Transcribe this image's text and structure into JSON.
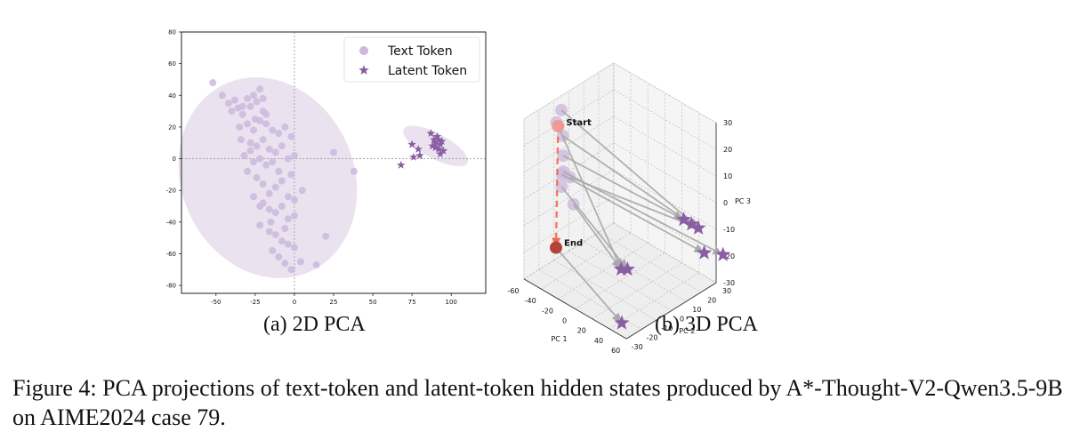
{
  "subcaptions": {
    "a_prefix": "(a)",
    "a_title": "2D PCA",
    "b_prefix": "(b)",
    "b_title": "3D PCA"
  },
  "figure_caption": "Figure 4: PCA projections of text-token and latent-token hidden states produced by A*-Thought-V2-Qwen3.5-9B on AIME2024 case 79.",
  "colors": {
    "text_token": "#cdb9dd",
    "latent_token": "#8a5ea4",
    "ellipse": "#e8dded",
    "arrow": "#a8a8a8",
    "start": "#ee9a94",
    "end": "#b0443a",
    "trajectory": "#ee6a50"
  },
  "chart_data": [
    {
      "type": "scatter",
      "xlim": [
        -72,
        122
      ],
      "ylim": [
        -85,
        80
      ],
      "xticks": [
        -50,
        -25,
        0,
        25,
        50,
        75,
        100
      ],
      "yticks": [
        -80,
        -60,
        -40,
        -20,
        0,
        20,
        40,
        60,
        80
      ],
      "grid": false,
      "reference_lines": {
        "x": 0,
        "y": 0
      },
      "legend_position": "top-right",
      "series": [
        {
          "name": "Text Token",
          "marker": "circle",
          "points": [
            [
              -52,
              48
            ],
            [
              -46,
              40
            ],
            [
              -42,
              35
            ],
            [
              -40,
              30
            ],
            [
              -38,
              37
            ],
            [
              -36,
              32
            ],
            [
              -33,
              28
            ],
            [
              -30,
              38
            ],
            [
              -28,
              33
            ],
            [
              -26,
              40
            ],
            [
              -22,
              44
            ],
            [
              -24,
              36
            ],
            [
              -20,
              30
            ],
            [
              -18,
              28
            ],
            [
              -35,
              20
            ],
            [
              -30,
              22
            ],
            [
              -26,
              18
            ],
            [
              -22,
              24
            ],
            [
              -18,
              22
            ],
            [
              -14,
              18
            ],
            [
              -10,
              16
            ],
            [
              -6,
              20
            ],
            [
              -2,
              14
            ],
            [
              -34,
              12
            ],
            [
              -28,
              10
            ],
            [
              -24,
              8
            ],
            [
              -20,
              12
            ],
            [
              -16,
              6
            ],
            [
              -12,
              4
            ],
            [
              -8,
              8
            ],
            [
              -4,
              0
            ],
            [
              0,
              2
            ],
            [
              -32,
              2
            ],
            [
              -26,
              -2
            ],
            [
              -22,
              0
            ],
            [
              -18,
              -4
            ],
            [
              -14,
              -2
            ],
            [
              -30,
              -8
            ],
            [
              -24,
              -12
            ],
            [
              -20,
              -16
            ],
            [
              -16,
              -22
            ],
            [
              -12,
              -18
            ],
            [
              -8,
              -14
            ],
            [
              -4,
              -24
            ],
            [
              0,
              -26
            ],
            [
              5,
              -20
            ],
            [
              -26,
              -24
            ],
            [
              -20,
              -28
            ],
            [
              -16,
              -32
            ],
            [
              -12,
              -34
            ],
            [
              -8,
              -30
            ],
            [
              -4,
              -38
            ],
            [
              0,
              -36
            ],
            [
              -22,
              -42
            ],
            [
              -16,
              -46
            ],
            [
              -12,
              -48
            ],
            [
              -8,
              -52
            ],
            [
              -4,
              -54
            ],
            [
              0,
              -56
            ],
            [
              -14,
              -58
            ],
            [
              -10,
              -62
            ],
            [
              -6,
              -66
            ],
            [
              -2,
              -70
            ],
            [
              4,
              -65
            ],
            [
              25,
              4
            ],
            [
              38,
              -8
            ],
            [
              20,
              -49
            ],
            [
              14,
              -67
            ],
            [
              -25,
              25
            ],
            [
              -33,
              33
            ],
            [
              -20,
              38
            ],
            [
              -28,
              5
            ],
            [
              -10,
              -8
            ],
            [
              -6,
              -44
            ],
            [
              -15,
              -40
            ],
            [
              -22,
              -30
            ],
            [
              -2,
              -10
            ]
          ]
        },
        {
          "name": "Latent Token",
          "marker": "star",
          "points": [
            [
              68,
              -4
            ],
            [
              75,
              9
            ],
            [
              76,
              1
            ],
            [
              79,
              6
            ],
            [
              80,
              2
            ],
            [
              87,
              16
            ],
            [
              88,
              8
            ],
            [
              89,
              12
            ],
            [
              90,
              10
            ],
            [
              91,
              14
            ],
            [
              92,
              6
            ],
            [
              92,
              12
            ],
            [
              93,
              9
            ],
            [
              94,
              11
            ],
            [
              95,
              5
            ],
            [
              93,
              3
            ],
            [
              90,
              7
            ]
          ]
        }
      ],
      "ellipses": [
        {
          "center": [
            -17,
            -12
          ],
          "width": 110,
          "height": 130,
          "angle": -24
        },
        {
          "center": [
            90,
            8
          ],
          "width": 46,
          "height": 16,
          "angle": 28
        }
      ]
    },
    {
      "type": "scatter",
      "xlabel": "PC 1",
      "ylabel": "PC 2",
      "zlabel": "PC 3",
      "xticks": [
        -60,
        -40,
        -20,
        0,
        20,
        40,
        60
      ],
      "yticks": [
        -30,
        -20,
        -10,
        0,
        10,
        20,
        30
      ],
      "zticks": [
        -30,
        -20,
        -10,
        0,
        10,
        20,
        30
      ],
      "xlim": [
        -60,
        60
      ],
      "ylim": [
        -30,
        30
      ],
      "zlim": [
        -30,
        30
      ],
      "annotations": [
        "Start",
        "End"
      ],
      "text_tokens": [
        [
          -46,
          -13,
          30
        ],
        [
          -50,
          -14,
          25
        ],
        [
          -46,
          -12,
          20
        ],
        [
          -42,
          -14,
          14
        ],
        [
          -40,
          -16,
          8
        ],
        [
          -42,
          -14,
          8
        ],
        [
          -38,
          -12,
          6
        ],
        [
          -44,
          -14,
          2
        ],
        [
          -30,
          -14,
          -2
        ]
      ],
      "latent_tokens": [
        [
          36,
          22,
          -8
        ],
        [
          40,
          25,
          -10
        ],
        [
          48,
          25,
          -10
        ],
        [
          60,
          22,
          -16
        ],
        [
          68,
          30,
          -18
        ],
        [
          10,
          -5,
          -22
        ],
        [
          14,
          -3,
          -22
        ],
        [
          16,
          -8,
          -40
        ]
      ],
      "start": [
        -48,
        -14,
        24
      ],
      "end": [
        -40,
        -20,
        -18
      ],
      "trajectory_arrows": [
        [
          [
            -46,
            -13,
            30
          ],
          [
            48,
            25,
            -10
          ]
        ],
        [
          [
            -50,
            -14,
            25
          ],
          [
            10,
            -5,
            -22
          ]
        ],
        [
          [
            -46,
            -12,
            20
          ],
          [
            40,
            25,
            -10
          ]
        ],
        [
          [
            -42,
            -14,
            14
          ],
          [
            36,
            22,
            -8
          ]
        ],
        [
          [
            -40,
            -16,
            8
          ],
          [
            60,
            22,
            -16
          ]
        ],
        [
          [
            -42,
            -14,
            8
          ],
          [
            68,
            30,
            -18
          ]
        ],
        [
          [
            -38,
            -12,
            6
          ],
          [
            48,
            25,
            -10
          ]
        ],
        [
          [
            -44,
            -14,
            2
          ],
          [
            14,
            -3,
            -22
          ]
        ],
        [
          [
            -30,
            -14,
            -2
          ],
          [
            10,
            -5,
            -22
          ]
        ],
        [
          [
            -40,
            -20,
            -18
          ],
          [
            16,
            -8,
            -40
          ]
        ]
      ]
    }
  ]
}
